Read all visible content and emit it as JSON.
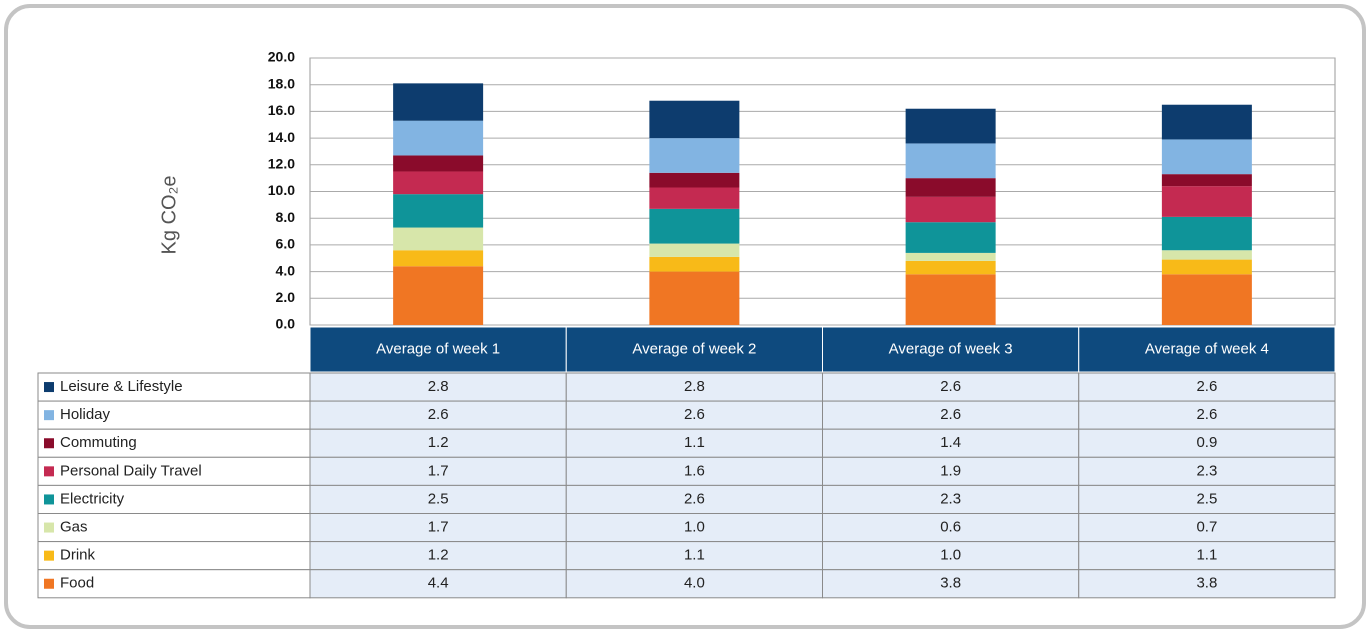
{
  "chart_data": {
    "type": "stacked-bar",
    "y_label": "Kg CO₂e",
    "categories": [
      "Average of week 1",
      "Average of week 2",
      "Average of week 3",
      "Average of week 4"
    ],
    "series": [
      {
        "name": "Leisure & Lifestyle",
        "color": "#0d3c6e",
        "values": [
          2.8,
          2.8,
          2.6,
          2.6
        ],
        "value_labels": [
          "2.8",
          "2.8",
          "2.6",
          "2.6"
        ]
      },
      {
        "name": "Holiday",
        "color": "#82b4e2",
        "values": [
          2.6,
          2.6,
          2.6,
          2.6
        ],
        "value_labels": [
          "2.6",
          "2.6",
          "2.6",
          "2.6"
        ]
      },
      {
        "name": "Commuting",
        "color": "#8a0b2b",
        "values": [
          1.2,
          1.1,
          1.4,
          0.9
        ],
        "value_labels": [
          "1.2",
          "1.1",
          "1.4",
          "0.9"
        ]
      },
      {
        "name": "Personal Daily Travel",
        "color": "#c42a51",
        "values": [
          1.7,
          1.6,
          1.9,
          2.3
        ],
        "value_labels": [
          "1.7",
          "1.6",
          "1.9",
          "2.3"
        ]
      },
      {
        "name": "Electricity",
        "color": "#0f9499",
        "values": [
          2.5,
          2.6,
          2.3,
          2.5
        ],
        "value_labels": [
          "2.5",
          "2.6",
          "2.3",
          "2.5"
        ]
      },
      {
        "name": "Gas",
        "color": "#d7e6aa",
        "values": [
          1.7,
          1.0,
          0.6,
          0.7
        ],
        "value_labels": [
          "1.7",
          "1.0",
          "0.6",
          "0.7"
        ]
      },
      {
        "name": "Drink",
        "color": "#f8ba18",
        "values": [
          1.2,
          1.1,
          1.0,
          1.1
        ],
        "value_labels": [
          "1.2",
          "1.1",
          "1.0",
          "1.1"
        ]
      },
      {
        "name": "Food",
        "color": "#f07623",
        "values": [
          4.4,
          4.0,
          3.8,
          3.8
        ],
        "value_labels": [
          "4.4",
          "4.0",
          "3.8",
          "3.8"
        ]
      }
    ],
    "ylim": [
      0,
      20
    ],
    "yticks": [
      {
        "value": 0,
        "label": "0.0"
      },
      {
        "value": 2,
        "label": "2.0"
      },
      {
        "value": 4,
        "label": "4.0"
      },
      {
        "value": 6,
        "label": "6.0"
      },
      {
        "value": 8,
        "label": "8.0"
      },
      {
        "value": 10,
        "label": "10.0"
      },
      {
        "value": 12,
        "label": "12.0"
      },
      {
        "value": 14,
        "label": "14.0"
      },
      {
        "value": 16,
        "label": "16.0"
      },
      {
        "value": 18,
        "label": "18.0"
      },
      {
        "value": 20,
        "label": "20.0"
      }
    ],
    "grid": true
  }
}
